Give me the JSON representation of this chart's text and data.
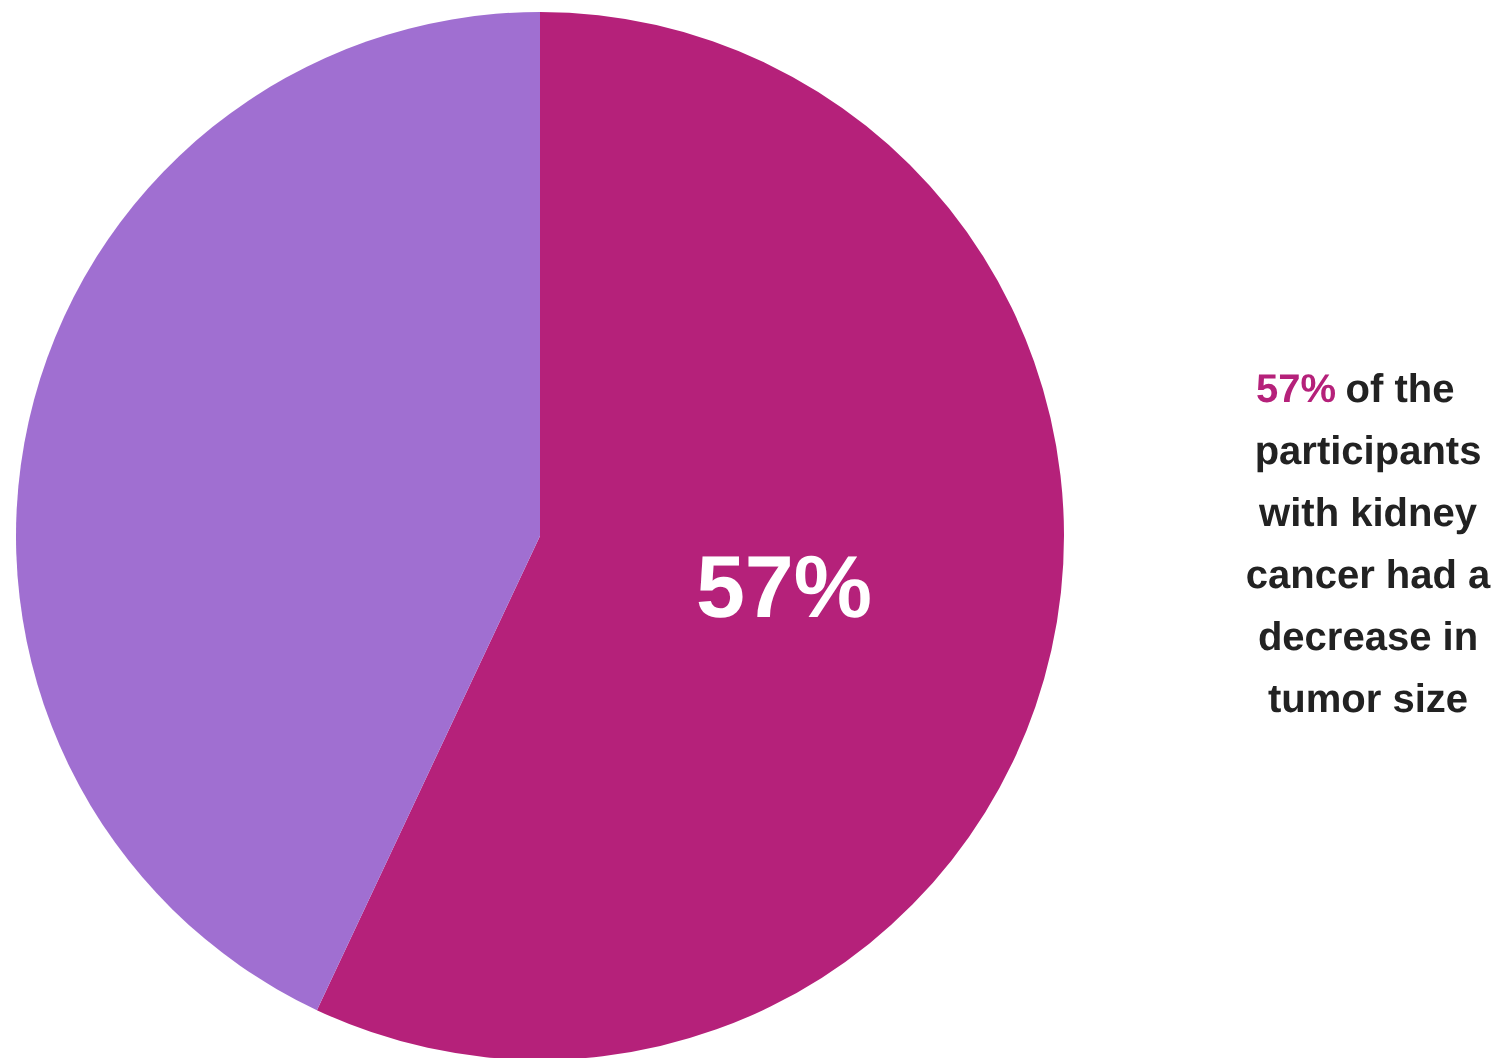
{
  "chart_data": {
    "type": "pie",
    "categories": [
      null,
      null
    ],
    "values": [
      57,
      43
    ],
    "colors": [
      "#b5217a",
      "#a06fd1"
    ],
    "value_labels": [
      "57%",
      null
    ],
    "annotations": [
      "57% of the participants with kidney cancer had a decrease in tumor size"
    ]
  }
}
